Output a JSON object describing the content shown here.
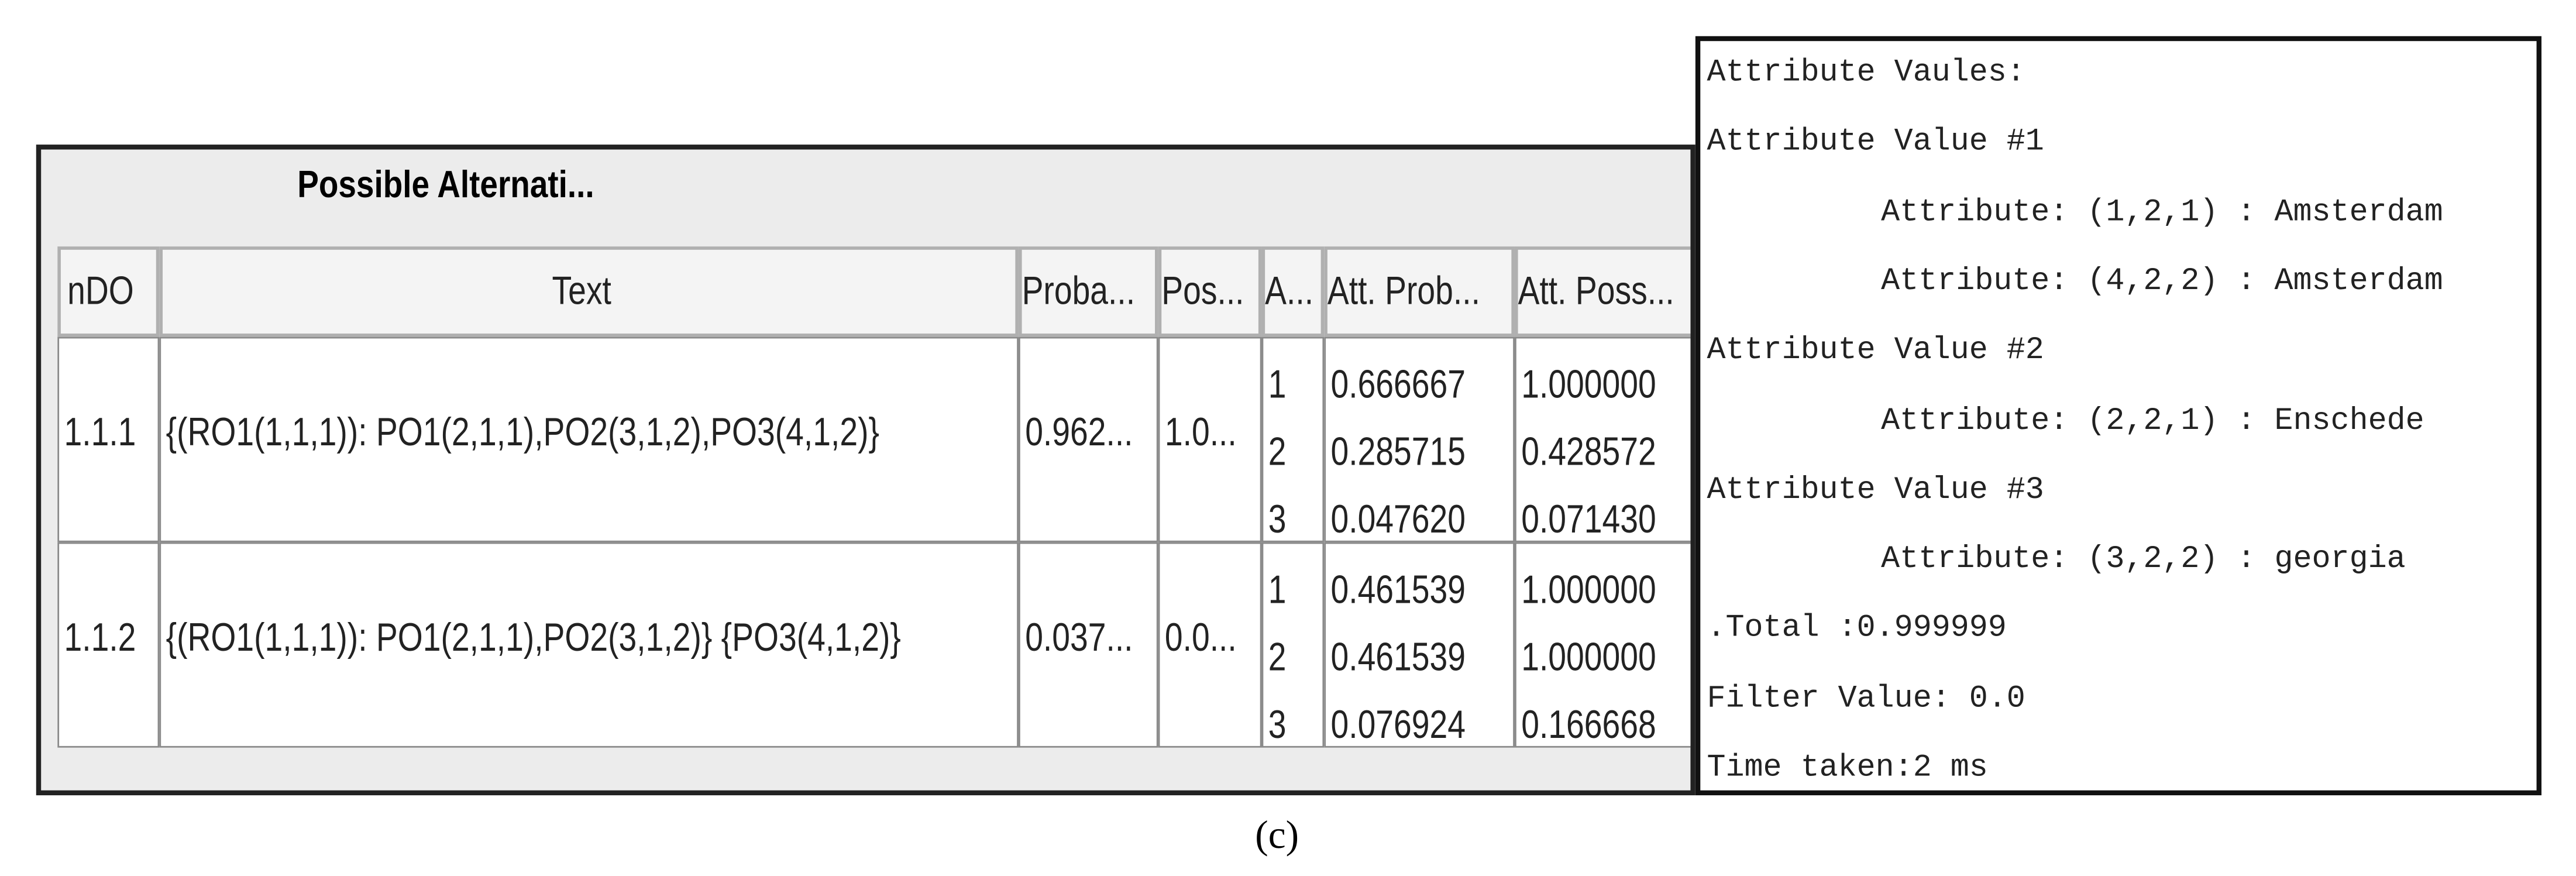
{
  "panel": {
    "title": "Possible Alternati..."
  },
  "table": {
    "columns": [
      "nDO",
      "Text",
      "Proba...",
      "Pos...",
      "A...",
      "Att. Prob...",
      "Att. Poss..."
    ],
    "rows": [
      [
        "1.1.1",
        "{(RO1(1,1,1)): PO1(2,1,1),PO2(3,1,2),PO3(4,1,2)}",
        "0.962...",
        "1.0...",
        [
          "1",
          "2",
          "3"
        ],
        [
          "0.666667",
          "0.285715",
          "0.047620"
        ],
        [
          "1.000000",
          "0.428572",
          "0.071430"
        ]
      ],
      [
        "1.1.2",
        "{(RO1(1,1,1)): PO1(2,1,1),PO2(3,1,2)} {PO3(4,1,2)}",
        "0.037...",
        "0.0...",
        [
          "1",
          "2",
          "3"
        ],
        [
          "0.461539",
          "0.461539",
          "0.076924"
        ],
        [
          "1.000000",
          "1.000000",
          "0.166668"
        ]
      ]
    ]
  },
  "console": {
    "heading": "Attribute Vaules:",
    "groups": [
      {
        "label": "Attribute Value #1",
        "items": [
          "Attribute: (1,2,1) : Amsterdam",
          "Attribute: (4,2,2) : Amsterdam"
        ]
      },
      {
        "label": "Attribute Value #2",
        "items": [
          "Attribute: (2,2,1) : Enschede"
        ]
      },
      {
        "label": "Attribute Value #3",
        "items": [
          "Attribute: (3,2,2) : georgia"
        ]
      }
    ],
    "footer": [
      ".Total :0.999999",
      "Filter Value: 0.0",
      "Time taken:2 ms"
    ]
  },
  "caption": "(c)"
}
